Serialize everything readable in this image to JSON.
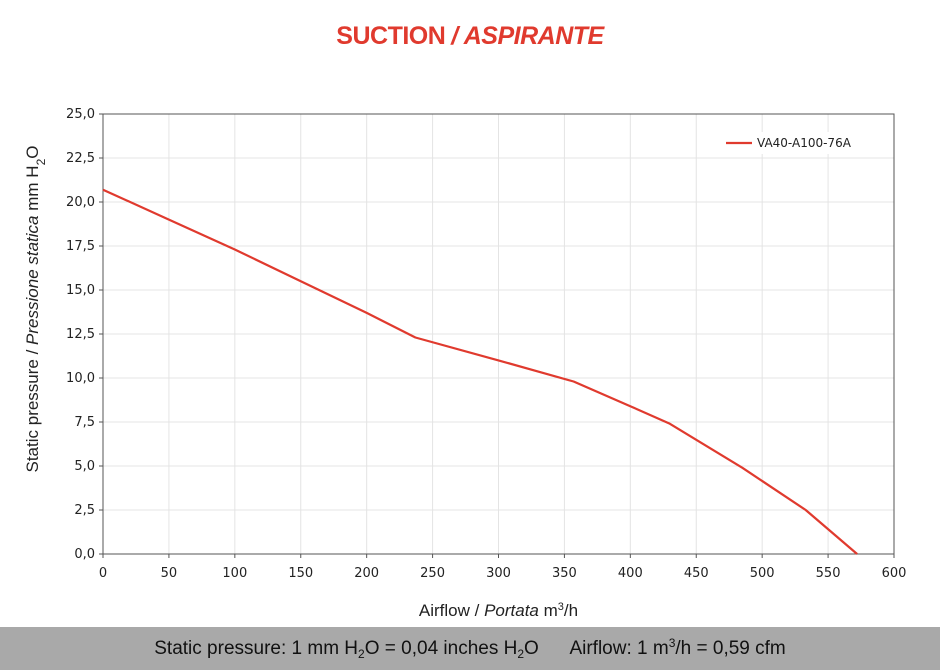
{
  "title": {
    "main": "SUCTION",
    "separator": "/",
    "italic": "ASPIRANTE"
  },
  "footer": {
    "pressure_text": "Static pressure: 1 mm H₂O = 0,04 inches H₂O",
    "airflow_text": "Airflow: 1 m³/h = 0,59 cfm"
  },
  "chart_data": {
    "type": "line",
    "xlabel": "Airflow / Portata m³/h",
    "ylabel": "Static pressure / Pressione statica mm H₂O",
    "xlim": [
      0,
      600
    ],
    "ylim": [
      0,
      25
    ],
    "x_ticks": [
      "0",
      "50",
      "100",
      "150",
      "200",
      "250",
      "300",
      "350",
      "400",
      "450",
      "500",
      "550",
      "600"
    ],
    "y_ticks": [
      "0,0",
      "2,5",
      "5,0",
      "7,5",
      "10,0",
      "12,5",
      "15,0",
      "17,5",
      "20,0",
      "22,5",
      "25,0"
    ],
    "grid": true,
    "legend_position": "top-right",
    "series": [
      {
        "name": "VA40-A100-76A",
        "color": "#e03a2e",
        "x": [
          0,
          50,
          100,
          150,
          200,
          237,
          300,
          357,
          400,
          430,
          485,
          533,
          572
        ],
        "y": [
          20.7,
          19.0,
          17.3,
          15.5,
          13.7,
          12.3,
          11.0,
          9.8,
          8.4,
          7.4,
          4.9,
          2.5,
          0.0
        ]
      }
    ]
  }
}
